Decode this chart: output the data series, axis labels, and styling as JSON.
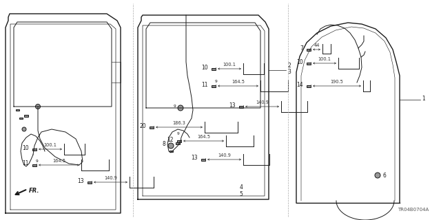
{
  "bg_color": "#ffffff",
  "diagram_ref": "TR04B0704A",
  "fig_width": 6.4,
  "fig_height": 3.2,
  "line_color": "#1a1a1a",
  "dim_color": "#333333",
  "fs_label": 5.5,
  "fs_dim": 4.8,
  "fs_tiny": 4.2
}
